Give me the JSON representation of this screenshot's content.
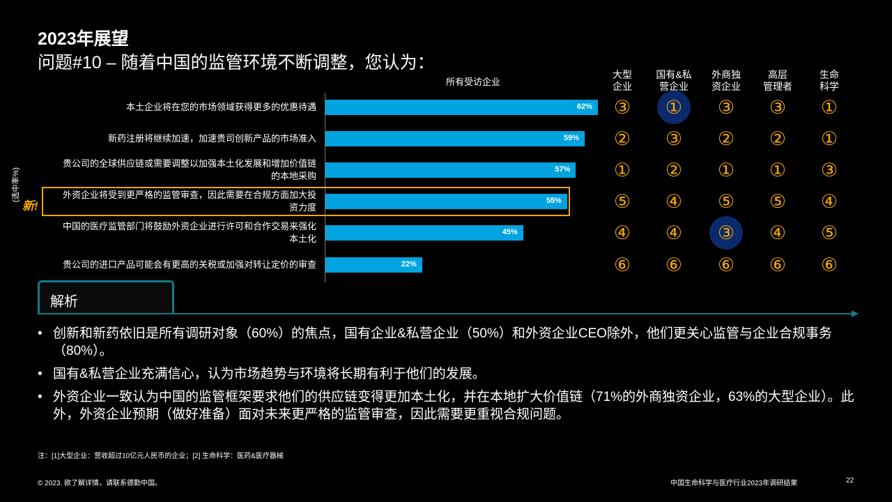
{
  "slide": {
    "title_line1": "2023年展望",
    "title_line2": "问题#10 – 随着中国的监管环境不断调整，您认为：",
    "chart_header": "所有受访企业",
    "y_axis_label": "(选中率%)",
    "new_tag": "新!"
  },
  "chart_data": {
    "type": "bar",
    "orientation": "horizontal",
    "categories": [
      "本土企业将在您的市场领域获得更多的优惠待遇",
      "新药注册将继续加速，加速贵司创新产品的市场准入",
      "贵公司的全球供应链或需要调整以加强本土化发展和增加价值链的本地采购",
      "外资企业将受到更严格的监管审查，因此需要在合规方面加大投资力度",
      "中国的医疗监管部门将鼓励外资企业进行许可和合作交易来强化本土化",
      "贵公司的进口产品可能会有更高的关税或加强对转让定价的审查"
    ],
    "category_lines": [
      [
        "本土企业将在您的市场领域获得更多的优惠待遇"
      ],
      [
        "新药注册将继续加速，加速贵司创新产品的市场准入"
      ],
      [
        "贵公司的全球供应链或需要调整以加强本土化发展和增加价值链",
        "的本地采购"
      ],
      [
        "外资企业将受到更严格的监管审查，因此需要在合规方面加大投",
        "资力度"
      ],
      [
        "中国的医疗监管部门将鼓励外资企业进行许可和合作交易来强化",
        "本土化"
      ],
      [
        "贵公司的进口产品可能会有更高的关税或加强对转让定价的审查"
      ]
    ],
    "values": [
      62,
      59,
      57,
      55,
      45,
      22
    ],
    "value_labels": [
      "62%",
      "59%",
      "57%",
      "55%",
      "45%",
      "22%"
    ],
    "unit": "%",
    "xlim": [
      0,
      70
    ],
    "bar_color": "#00a3e0",
    "highlight_index": 3,
    "highlight_color": "#f5a800"
  },
  "rank_table": {
    "headers": [
      [
        "大型",
        "企业"
      ],
      [
        "国有&私",
        "营企业"
      ],
      [
        "外商独",
        "资企业"
      ],
      [
        "高层",
        "管理者"
      ],
      [
        "生命",
        "科学"
      ]
    ],
    "rows": [
      [
        "③",
        "①",
        "③",
        "③",
        "①"
      ],
      [
        "②",
        "③",
        "②",
        "②",
        "①"
      ],
      [
        "①",
        "②",
        "①",
        "①",
        "③"
      ],
      [
        "⑤",
        "④",
        "⑤",
        "⑤",
        "④"
      ],
      [
        "④",
        "④",
        "③",
        "④",
        "⑤"
      ],
      [
        "⑥",
        "⑥",
        "⑥",
        "⑥",
        "⑥"
      ]
    ],
    "highlighted_cells": [
      [
        0,
        1
      ],
      [
        4,
        2
      ]
    ],
    "rank_color": "#f5a800",
    "circle_color": "#0a2a6b"
  },
  "analysis": {
    "tab_label": "解析",
    "bullets": [
      "创新和新药依旧是所有调研对象（60%）的焦点，国有企业&私营企业（50%）和外资企业CEO除外，他们更关心监管与企业合规事务（80%）。",
      "国有&私营企业充满信心，认为市场趋势与环境将长期有利于他们的发展。",
      "外资企业一致认为中国的监管框架要求他们的供应链变得更加本土化，并在本地扩大价值链（71%的外商独资企业，63%的大型企业）。此外，外资企业预期（做好准备）面对未来更严格的监管审查，因此需要更重视合规问题。"
    ]
  },
  "footer": {
    "note": "注：[1]大型企业：营收超过10亿元人民币的企业；[2] 生命科学：医药&医疗器械",
    "copyright": "© 2023. 欲了解详情，请联系德勤中国。",
    "report_title": "中国生命科学与医疗行业2023年调研结果",
    "page_number": "22"
  }
}
